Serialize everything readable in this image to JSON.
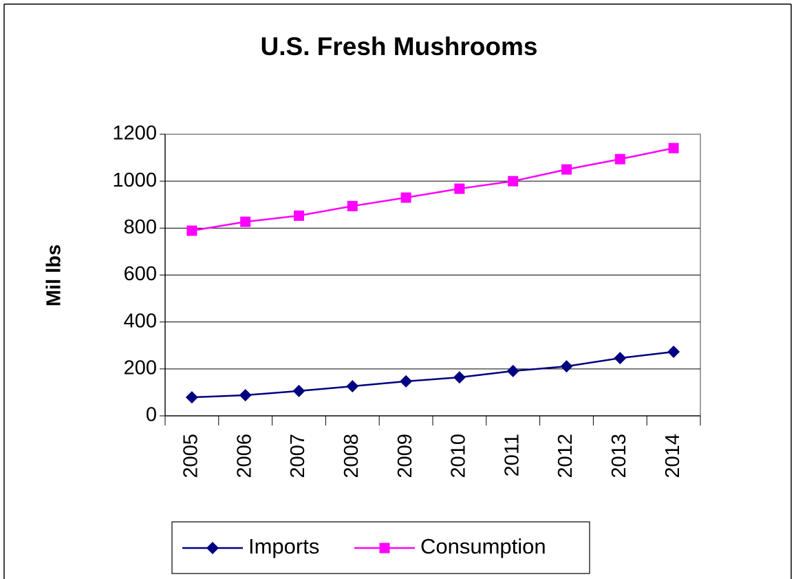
{
  "chart_data": {
    "type": "line",
    "title": "U.S. Fresh Mushrooms",
    "y_label": "Mil lbs",
    "categories": [
      "2005",
      "2006",
      "2007",
      "2008",
      "2009",
      "2010",
      "2011",
      "2012",
      "2013",
      "2014"
    ],
    "series": [
      {
        "name": "Imports",
        "color": "#000080",
        "marker": "diamond",
        "values": [
          79,
          88,
          106,
          126,
          147,
          164,
          191,
          211,
          246,
          273
        ]
      },
      {
        "name": "Consumption",
        "color": "#ff00ff",
        "marker": "square",
        "values": [
          789,
          827,
          853,
          894,
          930,
          968,
          1000,
          1050,
          1094,
          1141
        ]
      }
    ],
    "ylim": [
      0,
      1200
    ],
    "yticks": [
      0,
      200,
      400,
      600,
      800,
      1000,
      1200
    ],
    "grid": true,
    "legend": "bottom"
  }
}
